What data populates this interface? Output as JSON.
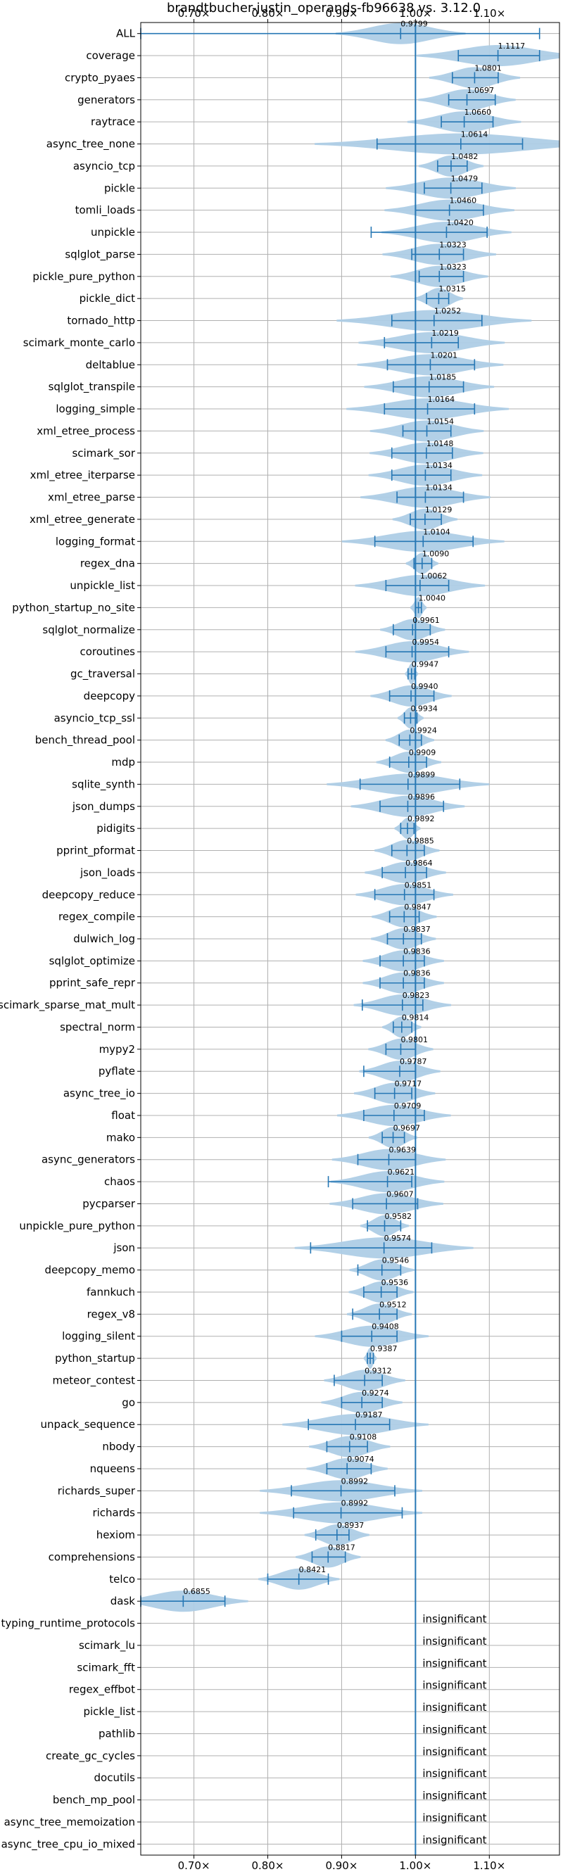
{
  "chart_data": {
    "type": "violin",
    "title": "brandtbucher-justin_operands-fb96638 vs. 3.12.0",
    "xlim": [
      0.628,
      1.195
    ],
    "x_ticks": [
      0.7,
      0.8,
      0.9,
      1.0,
      1.1
    ],
    "x_tick_labels": [
      "0.70×",
      "0.80×",
      "0.90×",
      "1.00×",
      "1.10×"
    ],
    "reference_line": 1.0,
    "grid": true,
    "colors": {
      "violin": "#aecde6",
      "line": "#2677b4",
      "grid": "#b0b0b0"
    },
    "insignificant_label": "insignificant",
    "rows": [
      {
        "name": "ALL",
        "value": 0.9799,
        "min": 0.628,
        "max": 1.168,
        "spread": 0.04,
        "value_label": "0.9799"
      },
      {
        "name": "coverage",
        "value": 1.1117,
        "min": 1.058,
        "max": 1.168,
        "spread": 0.05,
        "value_label": "1.1117"
      },
      {
        "name": "crypto_pyaes",
        "value": 1.0801,
        "min": 1.05,
        "max": 1.112,
        "spread": 0.028,
        "value_label": "1.0801"
      },
      {
        "name": "generators",
        "value": 1.0697,
        "min": 1.045,
        "max": 1.108,
        "spread": 0.03,
        "value_label": "1.0697"
      },
      {
        "name": "raytrace",
        "value": 1.066,
        "min": 1.035,
        "max": 1.105,
        "spread": 0.035,
        "value_label": "1.0660"
      },
      {
        "name": "async_tree_none",
        "value": 1.0614,
        "min": 0.948,
        "max": 1.145,
        "spread": 0.09,
        "value_label": "1.0614"
      },
      {
        "name": "asyncio_tcp",
        "value": 1.0482,
        "min": 1.03,
        "max": 1.07,
        "spread": 0.02,
        "value_label": "1.0482"
      },
      {
        "name": "pickle",
        "value": 1.0479,
        "min": 1.012,
        "max": 1.09,
        "spread": 0.04,
        "value_label": "1.0479"
      },
      {
        "name": "tomli_loads",
        "value": 1.046,
        "min": 1.0,
        "max": 1.092,
        "spread": 0.04,
        "value_label": "1.0460"
      },
      {
        "name": "unpickle",
        "value": 1.042,
        "min": 0.94,
        "max": 1.097,
        "spread": 0.04,
        "value_label": "1.0420"
      },
      {
        "name": "sqlglot_parse",
        "value": 1.0323,
        "min": 0.995,
        "max": 1.065,
        "spread": 0.035,
        "value_label": "1.0323"
      },
      {
        "name": "pickle_pure_python",
        "value": 1.0323,
        "min": 1.005,
        "max": 1.065,
        "spread": 0.03,
        "value_label": "1.0323"
      },
      {
        "name": "pickle_dict",
        "value": 1.0315,
        "min": 1.015,
        "max": 1.045,
        "spread": 0.015,
        "value_label": "1.0315"
      },
      {
        "name": "tornado_http",
        "value": 1.0252,
        "min": 0.968,
        "max": 1.09,
        "spread": 0.06,
        "value_label": "1.0252"
      },
      {
        "name": "scimark_monte_carlo",
        "value": 1.0219,
        "min": 0.958,
        "max": 1.058,
        "spread": 0.045,
        "value_label": "1.0219"
      },
      {
        "name": "deltablue",
        "value": 1.0201,
        "min": 0.962,
        "max": 1.08,
        "spread": 0.045,
        "value_label": "1.0201"
      },
      {
        "name": "sqlglot_transpile",
        "value": 1.0185,
        "min": 0.97,
        "max": 1.065,
        "spread": 0.04,
        "value_label": "1.0185"
      },
      {
        "name": "logging_simple",
        "value": 1.0164,
        "min": 0.958,
        "max": 1.08,
        "spread": 0.05,
        "value_label": "1.0164"
      },
      {
        "name": "xml_etree_process",
        "value": 1.0154,
        "min": 0.983,
        "max": 1.048,
        "spread": 0.035,
        "value_label": "1.0154"
      },
      {
        "name": "scimark_sor",
        "value": 1.0148,
        "min": 0.968,
        "max": 1.05,
        "spread": 0.035,
        "value_label": "1.0148"
      },
      {
        "name": "xml_etree_iterparse",
        "value": 1.0134,
        "min": 0.968,
        "max": 1.048,
        "spread": 0.035,
        "value_label": "1.0134"
      },
      {
        "name": "xml_etree_parse",
        "value": 1.0134,
        "min": 0.975,
        "max": 1.065,
        "spread": 0.04,
        "value_label": "1.0134"
      },
      {
        "name": "xml_etree_generate",
        "value": 1.0129,
        "min": 0.993,
        "max": 1.035,
        "spread": 0.02,
        "value_label": "1.0129"
      },
      {
        "name": "logging_format",
        "value": 1.0104,
        "min": 0.945,
        "max": 1.078,
        "spread": 0.05,
        "value_label": "1.0104"
      },
      {
        "name": "regex_dna",
        "value": 1.009,
        "min": 0.998,
        "max": 1.022,
        "spread": 0.01,
        "value_label": "1.0090"
      },
      {
        "name": "unpickle_list",
        "value": 1.0062,
        "min": 0.96,
        "max": 1.045,
        "spread": 0.04,
        "value_label": "1.0062"
      },
      {
        "name": "python_startup_no_site",
        "value": 1.004,
        "min": 1.0,
        "max": 1.008,
        "spread": 0.005,
        "value_label": "1.0040"
      },
      {
        "name": "sqlglot_normalize",
        "value": 0.9961,
        "min": 0.97,
        "max": 1.02,
        "spread": 0.02,
        "value_label": "0.9961"
      },
      {
        "name": "coroutines",
        "value": 0.9954,
        "min": 0.96,
        "max": 1.045,
        "spread": 0.035,
        "value_label": "0.9954"
      },
      {
        "name": "gc_traversal",
        "value": 0.9947,
        "min": 0.99,
        "max": 0.999,
        "spread": 0.004,
        "value_label": "0.9947"
      },
      {
        "name": "deepcopy",
        "value": 0.994,
        "min": 0.965,
        "max": 1.025,
        "spread": 0.025,
        "value_label": "0.9940"
      },
      {
        "name": "asyncio_tcp_ssl",
        "value": 0.9934,
        "min": 0.985,
        "max": 1.002,
        "spread": 0.008,
        "value_label": "0.9934"
      },
      {
        "name": "bench_thread_pool",
        "value": 0.9924,
        "min": 0.978,
        "max": 1.008,
        "spread": 0.015,
        "value_label": "0.9924"
      },
      {
        "name": "mdp",
        "value": 0.9909,
        "min": 0.965,
        "max": 1.015,
        "spread": 0.02,
        "value_label": "0.9909"
      },
      {
        "name": "sqlite_synth",
        "value": 0.9899,
        "min": 0.925,
        "max": 1.06,
        "spread": 0.05,
        "value_label": "0.9899"
      },
      {
        "name": "json_dumps",
        "value": 0.9896,
        "min": 0.952,
        "max": 1.038,
        "spread": 0.035,
        "value_label": "0.9896"
      },
      {
        "name": "pidigits",
        "value": 0.9892,
        "min": 0.98,
        "max": 0.998,
        "spread": 0.008,
        "value_label": "0.9892"
      },
      {
        "name": "pprint_pformat",
        "value": 0.9885,
        "min": 0.968,
        "max": 1.012,
        "spread": 0.02,
        "value_label": "0.9885"
      },
      {
        "name": "json_loads",
        "value": 0.9864,
        "min": 0.955,
        "max": 1.015,
        "spread": 0.025,
        "value_label": "0.9864"
      },
      {
        "name": "deepcopy_reduce",
        "value": 0.9851,
        "min": 0.945,
        "max": 1.025,
        "spread": 0.03,
        "value_label": "0.9851"
      },
      {
        "name": "regex_compile",
        "value": 0.9847,
        "min": 0.965,
        "max": 1.005,
        "spread": 0.02,
        "value_label": "0.9847"
      },
      {
        "name": "dulwich_log",
        "value": 0.9837,
        "min": 0.962,
        "max": 1.008,
        "spread": 0.02,
        "value_label": "0.9837"
      },
      {
        "name": "sqlglot_optimize",
        "value": 0.9836,
        "min": 0.952,
        "max": 1.012,
        "spread": 0.025,
        "value_label": "0.9836"
      },
      {
        "name": "pprint_safe_repr",
        "value": 0.9836,
        "min": 0.952,
        "max": 1.012,
        "spread": 0.025,
        "value_label": "0.9836"
      },
      {
        "name": "scimark_sparse_mat_mult",
        "value": 0.9823,
        "min": 0.928,
        "max": 1.01,
        "spread": 0.03,
        "value_label": "0.9823"
      },
      {
        "name": "spectral_norm",
        "value": 0.9814,
        "min": 0.97,
        "max": 0.995,
        "spread": 0.012,
        "value_label": "0.9814"
      },
      {
        "name": "mypy2",
        "value": 0.9801,
        "min": 0.96,
        "max": 1.0,
        "spread": 0.02,
        "value_label": "0.9801"
      },
      {
        "name": "pyflate",
        "value": 0.9787,
        "min": 0.93,
        "max": 1.0,
        "spread": 0.025,
        "value_label": "0.9787"
      },
      {
        "name": "async_tree_io",
        "value": 0.9717,
        "min": 0.945,
        "max": 0.995,
        "spread": 0.025,
        "value_label": "0.9717"
      },
      {
        "name": "float",
        "value": 0.9709,
        "min": 0.93,
        "max": 1.012,
        "spread": 0.035,
        "value_label": "0.9709"
      },
      {
        "name": "mako",
        "value": 0.9697,
        "min": 0.955,
        "max": 0.985,
        "spread": 0.015,
        "value_label": "0.9697"
      },
      {
        "name": "async_generators",
        "value": 0.9639,
        "min": 0.922,
        "max": 1.0,
        "spread": 0.035,
        "value_label": "0.9639"
      },
      {
        "name": "chaos",
        "value": 0.9621,
        "min": 0.882,
        "max": 0.995,
        "spread": 0.035,
        "value_label": "0.9621"
      },
      {
        "name": "pycparser",
        "value": 0.9607,
        "min": 0.915,
        "max": 1.003,
        "spread": 0.035,
        "value_label": "0.9607"
      },
      {
        "name": "unpickle_pure_python",
        "value": 0.9582,
        "min": 0.935,
        "max": 0.98,
        "spread": 0.015,
        "value_label": "0.9582"
      },
      {
        "name": "json",
        "value": 0.9574,
        "min": 0.858,
        "max": 1.022,
        "spread": 0.055,
        "value_label": "0.9574"
      },
      {
        "name": "deepcopy_memo",
        "value": 0.9546,
        "min": 0.922,
        "max": 0.98,
        "spread": 0.02,
        "value_label": "0.9546"
      },
      {
        "name": "fannkuch",
        "value": 0.9536,
        "min": 0.93,
        "max": 0.975,
        "spread": 0.02,
        "value_label": "0.9536"
      },
      {
        "name": "regex_v8",
        "value": 0.9512,
        "min": 0.915,
        "max": 0.975,
        "spread": 0.02,
        "value_label": "0.9512"
      },
      {
        "name": "logging_silent",
        "value": 0.9408,
        "min": 0.9,
        "max": 0.975,
        "spread": 0.035,
        "value_label": "0.9408"
      },
      {
        "name": "python_startup",
        "value": 0.9387,
        "min": 0.935,
        "max": 0.943,
        "spread": 0.004,
        "value_label": "0.9387"
      },
      {
        "name": "meteor_contest",
        "value": 0.9312,
        "min": 0.89,
        "max": 0.955,
        "spread": 0.025,
        "value_label": "0.9312"
      },
      {
        "name": "go",
        "value": 0.9274,
        "min": 0.9,
        "max": 0.955,
        "spread": 0.025,
        "value_label": "0.9274"
      },
      {
        "name": "unpack_sequence",
        "value": 0.9187,
        "min": 0.855,
        "max": 0.965,
        "spread": 0.045,
        "value_label": "0.9187"
      },
      {
        "name": "nbody",
        "value": 0.9108,
        "min": 0.88,
        "max": 0.935,
        "spread": 0.025,
        "value_label": "0.9108"
      },
      {
        "name": "nqueens",
        "value": 0.9074,
        "min": 0.88,
        "max": 0.94,
        "spread": 0.025,
        "value_label": "0.9074"
      },
      {
        "name": "richards_super",
        "value": 0.8992,
        "min": 0.832,
        "max": 0.972,
        "spread": 0.05,
        "value_label": "0.8992"
      },
      {
        "name": "richards",
        "value": 0.8992,
        "min": 0.835,
        "max": 0.982,
        "spread": 0.05,
        "value_label": "0.8992"
      },
      {
        "name": "hexiom",
        "value": 0.8937,
        "min": 0.865,
        "max": 0.91,
        "spread": 0.02,
        "value_label": "0.8937"
      },
      {
        "name": "comprehensions",
        "value": 0.8817,
        "min": 0.86,
        "max": 0.905,
        "spread": 0.02,
        "value_label": "0.8817"
      },
      {
        "name": "telco",
        "value": 0.8421,
        "min": 0.8,
        "max": 0.882,
        "spread": 0.025,
        "value_label": "0.8421"
      },
      {
        "name": "dask",
        "value": 0.6855,
        "min": 0.628,
        "max": 0.742,
        "spread": 0.04,
        "value_label": "0.6855"
      },
      {
        "name": "typing_runtime_protocols",
        "value": null
      },
      {
        "name": "scimark_lu",
        "value": null
      },
      {
        "name": "scimark_fft",
        "value": null
      },
      {
        "name": "regex_effbot",
        "value": null
      },
      {
        "name": "pickle_list",
        "value": null
      },
      {
        "name": "pathlib",
        "value": null
      },
      {
        "name": "create_gc_cycles",
        "value": null
      },
      {
        "name": "docutils",
        "value": null
      },
      {
        "name": "bench_mp_pool",
        "value": null
      },
      {
        "name": "async_tree_memoization",
        "value": null
      },
      {
        "name": "async_tree_cpu_io_mixed",
        "value": null
      }
    ]
  }
}
